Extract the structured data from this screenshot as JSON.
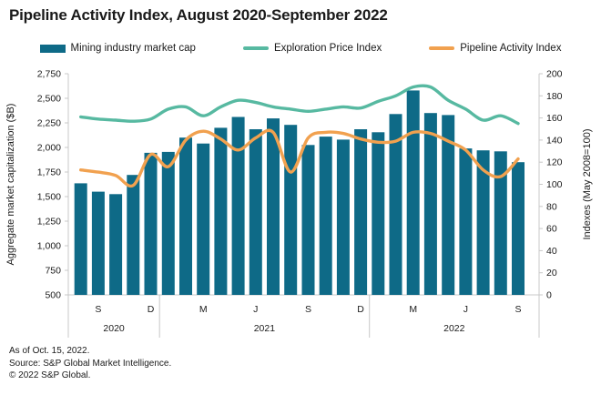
{
  "title": "Pipeline Activity Index, August 2020-September 2022",
  "legend": {
    "items": [
      {
        "label": "Mining industry market cap",
        "color": "#0E6A87",
        "swatch": "bar"
      },
      {
        "label": "Exploration Price Index",
        "color": "#57B9A1",
        "swatch": "line"
      },
      {
        "label": "Pipeline Activity Index",
        "color": "#F1A14F",
        "swatch": "line"
      }
    ]
  },
  "footer": {
    "as_of": "As of Oct. 15, 2022.",
    "source": "Source: S&P Global Market Intelligence.",
    "copyright": "© 2022 S&P Global."
  },
  "chart_data": {
    "type": "bar+line combo",
    "title": "Pipeline Activity Index, August 2020-September 2022",
    "grid": false,
    "legend_position": "top",
    "months": [
      "Aug 2020",
      "Sep 2020",
      "Oct 2020",
      "Nov 2020",
      "Dec 2020",
      "Jan 2021",
      "Feb 2021",
      "Mar 2021",
      "Apr 2021",
      "May 2021",
      "Jun 2021",
      "Jul 2021",
      "Aug 2021",
      "Sep 2021",
      "Oct 2021",
      "Nov 2021",
      "Dec 2021",
      "Jan 2022",
      "Feb 2022",
      "Mar 2022",
      "Apr 2022",
      "May 2022",
      "Jun 2022",
      "Jul 2022",
      "Aug 2022",
      "Sep 2022"
    ],
    "x_ticks": [
      {
        "index": 1,
        "label": "S"
      },
      {
        "index": 4,
        "label": "D"
      },
      {
        "index": 7,
        "label": "M"
      },
      {
        "index": 10,
        "label": "J"
      },
      {
        "index": 13,
        "label": "S"
      },
      {
        "index": 16,
        "label": "D"
      },
      {
        "index": 19,
        "label": "M"
      },
      {
        "index": 22,
        "label": "J"
      },
      {
        "index": 25,
        "label": "S"
      }
    ],
    "year_groups": [
      {
        "label": "2020",
        "start": 0,
        "end": 4
      },
      {
        "label": "2021",
        "start": 5,
        "end": 16
      },
      {
        "label": "2022",
        "start": 17,
        "end": 25
      }
    ],
    "left_axis": {
      "label": "Aggregate market capitalization ($B)",
      "min": 500,
      "max": 2750,
      "step": 250
    },
    "right_axis": {
      "label": "Indexes  (May 2008=100)",
      "min": 0,
      "max": 200,
      "step": 20
    },
    "series": [
      {
        "name": "Mining industry market cap",
        "type": "bar",
        "axis": "left",
        "color": "#0E6A87",
        "values": [
          1635,
          1550,
          1525,
          1720,
          1945,
          1955,
          2100,
          2040,
          2200,
          2310,
          2185,
          2295,
          2230,
          2025,
          2110,
          2080,
          2185,
          2155,
          2340,
          2580,
          2350,
          2330,
          1990,
          1970,
          1960,
          1850
        ]
      },
      {
        "name": "Exploration Price Index",
        "type": "line",
        "axis": "right",
        "color": "#57B9A1",
        "values": [
          161,
          159,
          158,
          157,
          159,
          168,
          170,
          162,
          170,
          176,
          174,
          170,
          168,
          166,
          168,
          170,
          169,
          175,
          180,
          188,
          188,
          176,
          168,
          158,
          162,
          155
        ]
      },
      {
        "name": "Pipeline Activity Index",
        "type": "line",
        "axis": "right",
        "color": "#F1A14F",
        "values": [
          113,
          111,
          108,
          99,
          127,
          116,
          140,
          148,
          141,
          131,
          142,
          147,
          111,
          142,
          147,
          146,
          141,
          138,
          139,
          147,
          146,
          139,
          131,
          113,
          107,
          123
        ]
      }
    ]
  }
}
